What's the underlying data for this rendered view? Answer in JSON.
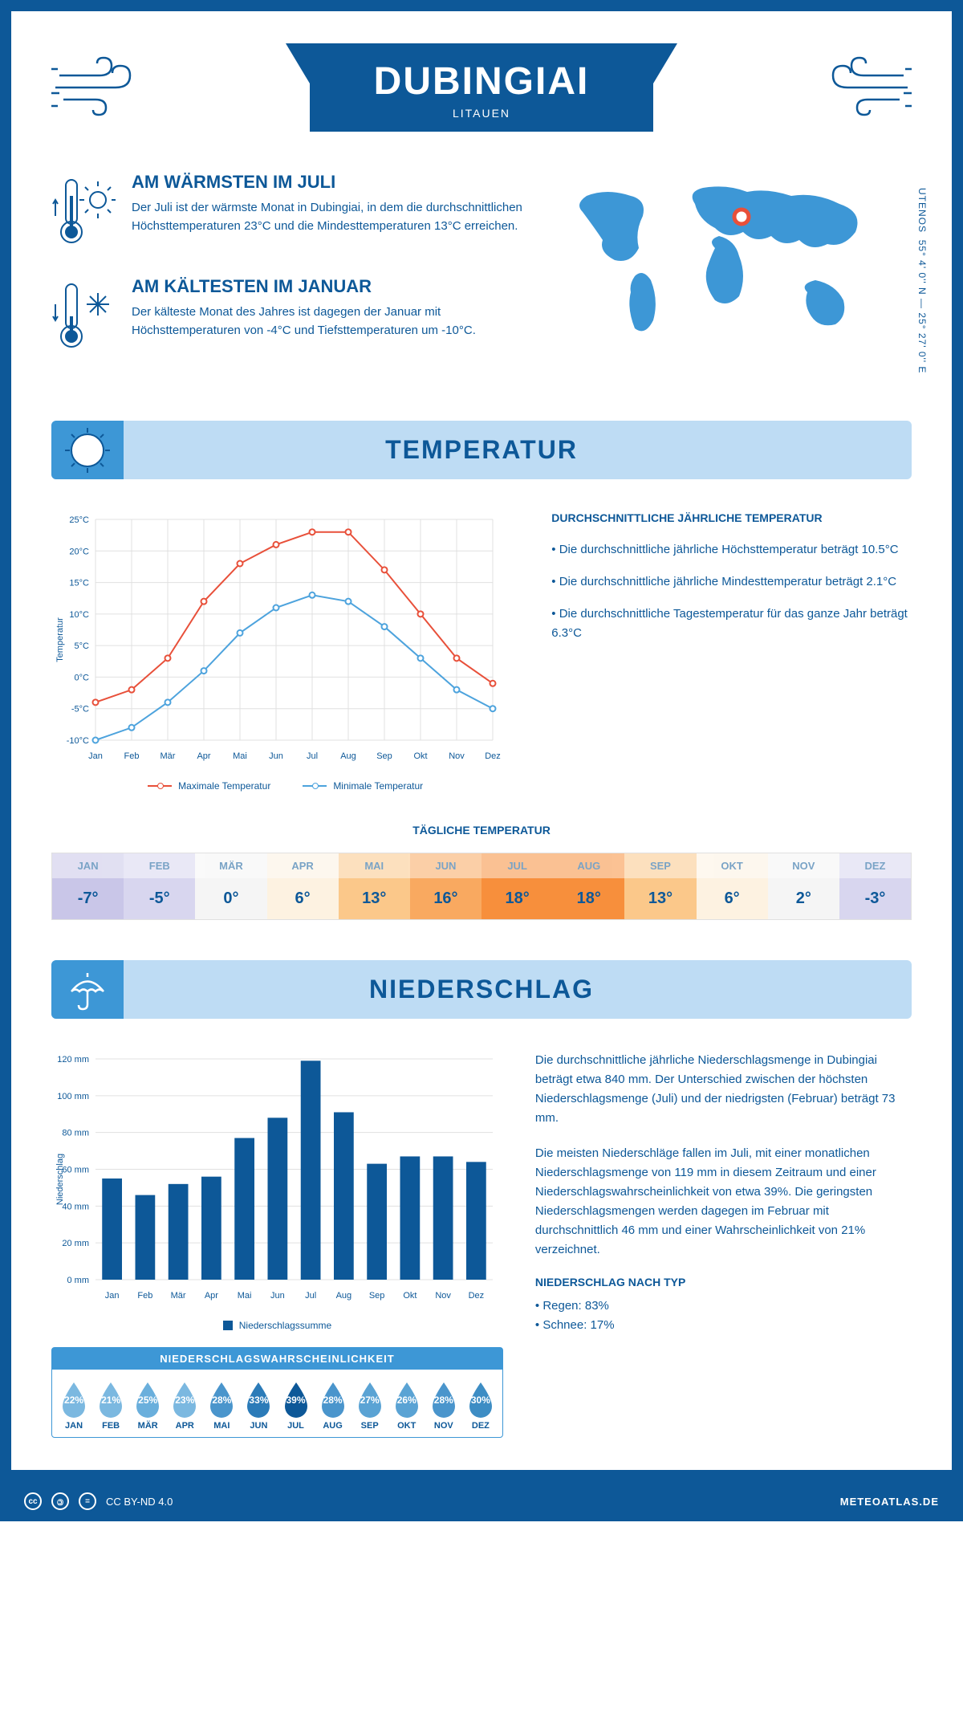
{
  "header": {
    "city": "DUBINGIAI",
    "country": "LITAUEN",
    "coordinates": "55° 4' 0'' N — 25° 27' 0'' E",
    "region": "UTENOS"
  },
  "intro": {
    "warm": {
      "title": "AM WÄRMSTEN IM JULI",
      "text": "Der Juli ist der wärmste Monat in Dubingiai, in dem die durchschnittlichen Höchsttemperaturen 23°C und die Mindesttemperaturen 13°C erreichen."
    },
    "cold": {
      "title": "AM KÄLTESTEN IM JANUAR",
      "text": "Der kälteste Monat des Jahres ist dagegen der Januar mit Höchsttemperaturen von -4°C und Tiefsttemperaturen um -10°C."
    }
  },
  "sections": {
    "temperature": "TEMPERATUR",
    "precipitation": "NIEDERSCHLAG"
  },
  "temp_chart": {
    "type": "line",
    "months": [
      "Jan",
      "Feb",
      "Mär",
      "Apr",
      "Mai",
      "Jun",
      "Jul",
      "Aug",
      "Sep",
      "Okt",
      "Nov",
      "Dez"
    ],
    "ylabel": "Temperatur",
    "ylim": [
      -10,
      25
    ],
    "ytick_step": 5,
    "max_series": {
      "label": "Maximale Temperatur",
      "color": "#e8503a",
      "values": [
        -4,
        -2,
        3,
        12,
        18,
        21,
        23,
        23,
        17,
        10,
        3,
        -1
      ]
    },
    "min_series": {
      "label": "Minimale Temperatur",
      "color": "#4da3dd",
      "values": [
        -10,
        -8,
        -4,
        1,
        7,
        11,
        13,
        12,
        8,
        3,
        -2,
        -5
      ]
    },
    "grid_color": "#e0e0e0"
  },
  "temp_info": {
    "title": "DURCHSCHNITTLICHE JÄHRLICHE TEMPERATUR",
    "items": [
      "• Die durchschnittliche jährliche Höchsttemperatur beträgt 10.5°C",
      "• Die durchschnittliche jährliche Mindesttemperatur beträgt 2.1°C",
      "• Die durchschnittliche Tagestemperatur für das ganze Jahr beträgt 6.3°C"
    ]
  },
  "daily": {
    "title": "TÄGLICHE TEMPERATUR",
    "months": [
      "JAN",
      "FEB",
      "MÄR",
      "APR",
      "MAI",
      "JUN",
      "JUL",
      "AUG",
      "SEP",
      "OKT",
      "NOV",
      "DEZ"
    ],
    "temps": [
      "-7°",
      "-5°",
      "0°",
      "6°",
      "13°",
      "16°",
      "18°",
      "18°",
      "13°",
      "6°",
      "2°",
      "-3°"
    ],
    "colors": [
      "#c9c6e8",
      "#d8d6ef",
      "#f5f5f5",
      "#fdf2e1",
      "#fbc88a",
      "#f9a960",
      "#f78f3c",
      "#f78f3c",
      "#fbc88a",
      "#fdf2e1",
      "#f5f5f5",
      "#d8d6ef"
    ]
  },
  "precip_chart": {
    "type": "bar",
    "months": [
      "Jan",
      "Feb",
      "Mär",
      "Apr",
      "Mai",
      "Jun",
      "Jul",
      "Aug",
      "Sep",
      "Okt",
      "Nov",
      "Dez"
    ],
    "ylabel": "Niederschlag",
    "ylim": [
      0,
      120
    ],
    "ytick_step": 20,
    "values": [
      55,
      46,
      52,
      56,
      77,
      88,
      119,
      91,
      63,
      67,
      67,
      64
    ],
    "bar_color": "#0d5898",
    "legend": "Niederschlagssumme"
  },
  "precip_text": {
    "p1": "Die durchschnittliche jährliche Niederschlagsmenge in Dubingiai beträgt etwa 840 mm. Der Unterschied zwischen der höchsten Niederschlagsmenge (Juli) und der niedrigsten (Februar) beträgt 73 mm.",
    "p2": "Die meisten Niederschläge fallen im Juli, mit einer monatlichen Niederschlagsmenge von 119 mm in diesem Zeitraum und einer Niederschlagswahrscheinlichkeit von etwa 39%. Die geringsten Niederschlagsmengen werden dagegen im Februar mit durchschnittlich 46 mm und einer Wahrscheinlichkeit von 21% verzeichnet.",
    "type_title": "NIEDERSCHLAG NACH TYP",
    "types": [
      "• Regen: 83%",
      "• Schnee: 17%"
    ]
  },
  "prob": {
    "title": "NIEDERSCHLAGSWAHRSCHEINLICHKEIT",
    "months": [
      "JAN",
      "FEB",
      "MÄR",
      "APR",
      "MAI",
      "JUN",
      "JUL",
      "AUG",
      "SEP",
      "OKT",
      "NOV",
      "DEZ"
    ],
    "values": [
      "22%",
      "21%",
      "25%",
      "23%",
      "28%",
      "33%",
      "39%",
      "28%",
      "27%",
      "26%",
      "28%",
      "30%"
    ],
    "colors": [
      "#7bb8e0",
      "#7bb8e0",
      "#6aafdc",
      "#7bb8e0",
      "#4a95cc",
      "#2b7bb8",
      "#0d5898",
      "#4a95cc",
      "#5aa3d4",
      "#5aa3d4",
      "#4a95cc",
      "#3d8dc4"
    ]
  },
  "footer": {
    "license": "CC BY-ND 4.0",
    "site": "METEOATLAS.DE"
  }
}
